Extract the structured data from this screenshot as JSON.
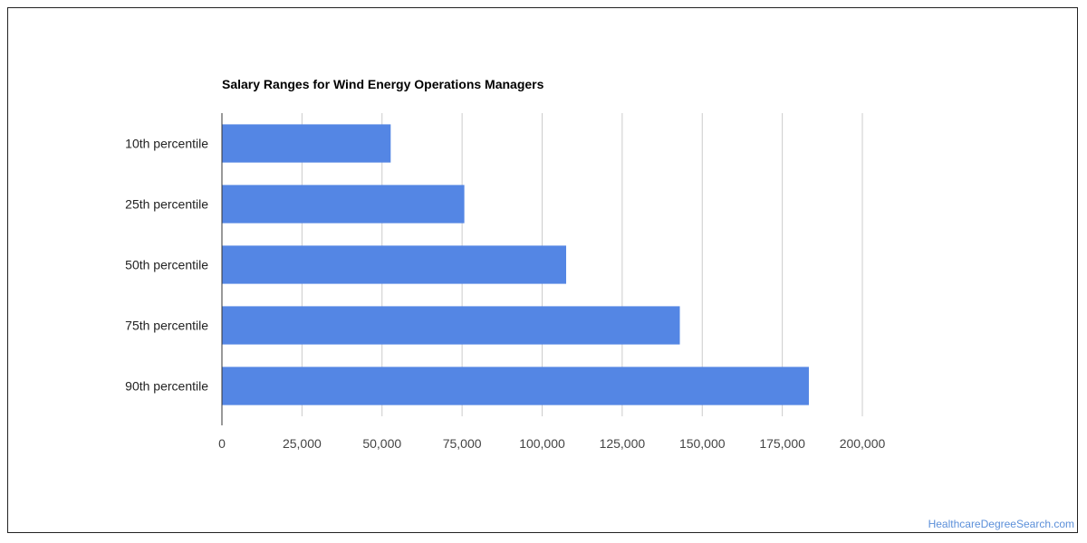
{
  "chart_data": {
    "type": "bar",
    "orientation": "horizontal",
    "title": "Salary Ranges for Wind Energy Operations Managers",
    "categories": [
      "10th percentile",
      "25th percentile",
      "50th percentile",
      "75th percentile",
      "90th percentile"
    ],
    "values": [
      52700,
      75700,
      107500,
      143000,
      183300
    ],
    "xlim": [
      0,
      200000
    ],
    "xticks": [
      0,
      25000,
      50000,
      75000,
      100000,
      125000,
      150000,
      175000,
      200000
    ],
    "xtick_labels": [
      "0",
      "25,000",
      "50,000",
      "75,000",
      "100,000",
      "125,000",
      "150,000",
      "175,000",
      "200,000"
    ],
    "grid": true,
    "bar_color": "#5486e4",
    "grid_color": "#cccccc"
  },
  "watermark": "HealthcareDegreeSearch.com"
}
